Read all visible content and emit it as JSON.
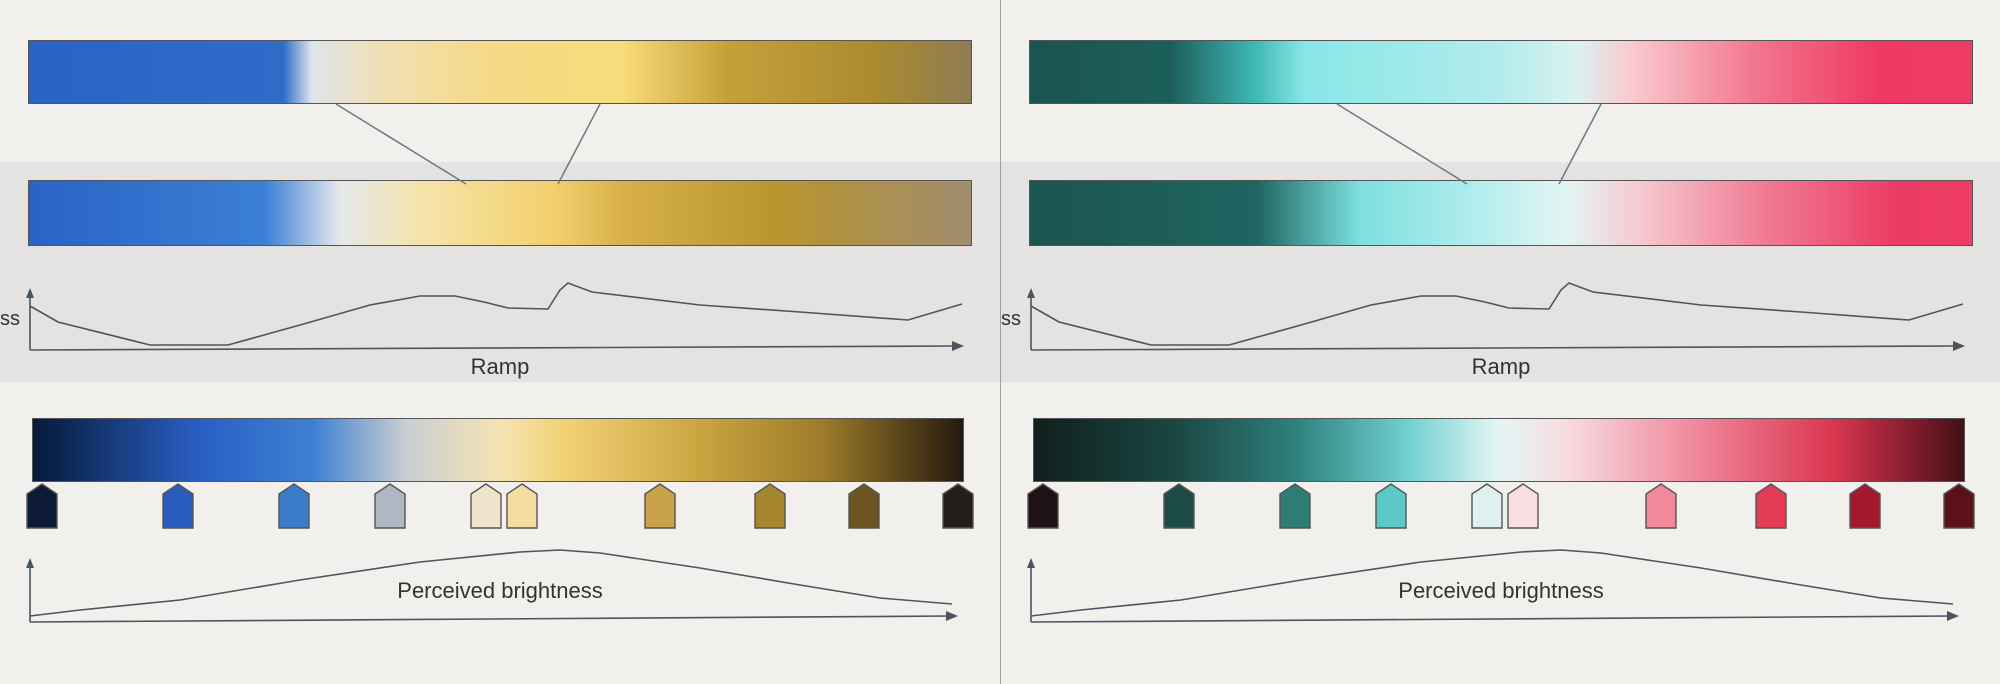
{
  "panels": [
    {
      "id": "left",
      "ramp_gradient": "linear-gradient(to right, #2a63c4 0%, #2f6cc8 27%, #dfe4ec 30%, #f1dfb0 38%, #f6d985 50%, #f8dc7a 63%, #c6a13a 74%, #aa8a2e 90%, #8f7c56 100%)",
      "warped_gradient": "linear-gradient(to right, #2a63c4 0%, #3b7fd6 25%, #e5e8ec 33%, #f5e3a8 42%, #f3cf6c 56%, #d7b04a 63%, #b8942f 80%, #a08d6f 100%)",
      "palette_gradient": "linear-gradient(to right, #061a3a 0%, #2a5fc4 18%, #3c80d2 30%, #c9cdd3 40%, #f4e3b4 50%, #f3d276 57%, #c9a43e 72%, #9c7b2a 85%, #3d2d14 97%, #221a12 100%)",
      "swatches": [
        "#0c1a36",
        "#2a5cbd",
        "#3a7ccc",
        "#aeb7c2",
        "#f0e4cc",
        "#f4dd9e",
        "#c9a24a",
        "#a6862f",
        "#6c5523",
        "#231e19"
      ]
    },
    {
      "id": "right",
      "ramp_gradient": "linear-gradient(to right, #1b5450 0%, #1c5f5a 15%, #3fb9b6 24%, #88e6e6 29%, #b3ecec 50%, #d9f1f1 58%, #f9c9ce 64%, #f2768f 77%, #ee3a61 90%, #ee3c62 100%)",
      "warped_gradient": "linear-gradient(to right, #1b5450 0%, #1f6561 24%, #7ce0df 35%, #b4eeee 48%, #e3f4f4 57%, #f6c8cf 65%, #f07b94 78%, #ec3b62 92%, #ee3c62 100%)",
      "palette_gradient": "linear-gradient(to right, #101f1d 0%, #1a4642 15%, #2d807c 28%, #6fcfcf 40%, #e4f5f4 50%, #f6dde1 57%, #f08298 72%, #d9364f 86%, #7c1a2a 95%, #401215 100%)",
      "swatches": [
        "#1f1214",
        "#1d4b47",
        "#2f7c77",
        "#5cc9c9",
        "#def0ef",
        "#f9dee2",
        "#f2899b",
        "#e43c57",
        "#a4182e",
        "#5a1119"
      ]
    }
  ],
  "labels": {
    "brightness_axis_fragment": "ss",
    "ramp_axis": "Ramp",
    "perceived_brightness": "Perceived brightness"
  }
}
